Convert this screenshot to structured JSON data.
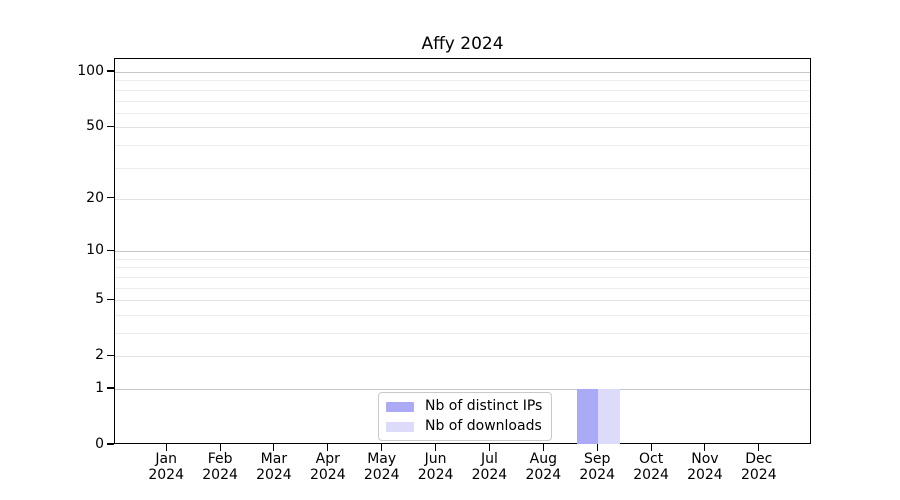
{
  "chart_data": {
    "type": "bar",
    "title": "Affy 2024",
    "categories": [
      "Jan 2024",
      "Feb 2024",
      "Mar 2024",
      "Apr 2024",
      "May 2024",
      "Jun 2024",
      "Jul 2024",
      "Aug 2024",
      "Sep 2024",
      "Oct 2024",
      "Nov 2024",
      "Dec 2024"
    ],
    "series": [
      {
        "name": "Nb of distinct IPs",
        "color": "#abaaf7",
        "values": [
          0,
          0,
          0,
          0,
          0,
          0,
          0,
          0,
          1,
          0,
          0,
          0
        ]
      },
      {
        "name": "Nb of downloads",
        "color": "#dcdbf9",
        "values": [
          0,
          0,
          0,
          0,
          0,
          0,
          0,
          0,
          1,
          0,
          0,
          0
        ]
      }
    ],
    "y_axis": {
      "scale": "log1p",
      "ylim": [
        0,
        100
      ],
      "major_ticks": [
        0,
        1,
        2,
        5,
        10,
        20,
        50,
        100
      ],
      "minor_ticks": [
        3,
        4,
        6,
        7,
        8,
        9,
        30,
        40,
        60,
        70,
        80,
        90
      ]
    },
    "x_axis": {
      "tick_label_lines": 2
    },
    "legend": {
      "position": "bottom-center"
    },
    "grid": "horizontal",
    "colors": {
      "axis": "#000000",
      "background": "#ffffff"
    }
  }
}
